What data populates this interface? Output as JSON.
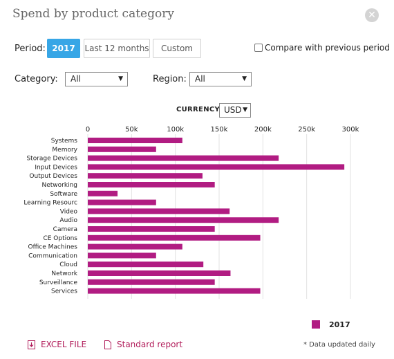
{
  "header": {
    "title": "Spend by product category",
    "close_icon": "close-icon"
  },
  "filters": {
    "period_label": "Period:",
    "period_options": [
      "2017",
      "Last 12 months",
      "Custom"
    ],
    "period_selected": "2017",
    "compare_label": "Compare with previous period",
    "compare_checked": false,
    "category_label": "Category:",
    "category_value": "All",
    "region_label": "Region:",
    "region_value": "All",
    "currency_label": "CURRENCY:",
    "currency_value": "USD"
  },
  "colors": {
    "bar": "#b11c82",
    "accent": "#37a6e6",
    "link": "#b11c5a"
  },
  "chart_data": {
    "type": "bar",
    "orientation": "horizontal",
    "xlim": [
      0,
      300000
    ],
    "ticks": [
      0,
      50000,
      100000,
      150000,
      200000,
      250000,
      300000
    ],
    "tick_labels": [
      "0",
      "50k",
      "100k",
      "150k",
      "200k",
      "250k",
      "300k"
    ],
    "categories": [
      "Systems",
      "Memory",
      "Storage Devices",
      "Input Devices",
      "Output Devices",
      "Networking",
      "Software",
      "Learning Resourc",
      "Video",
      "Audio",
      "Camera",
      "CE Options",
      "Office Machines",
      "Communication",
      "Cloud",
      "Network",
      "Surveillance",
      "Services"
    ],
    "series": [
      {
        "name": "2017",
        "values": [
          108000,
          78000,
          218000,
          293000,
          131000,
          145000,
          34000,
          78000,
          162000,
          218000,
          145000,
          197000,
          108000,
          78000,
          132000,
          163000,
          145000,
          197000
        ]
      }
    ],
    "grid": "vertical",
    "legend": "bottom-right"
  },
  "footer": {
    "excel_label": "EXCEL FILE",
    "report_label": "Standard report",
    "note": "* Data updated daily"
  }
}
